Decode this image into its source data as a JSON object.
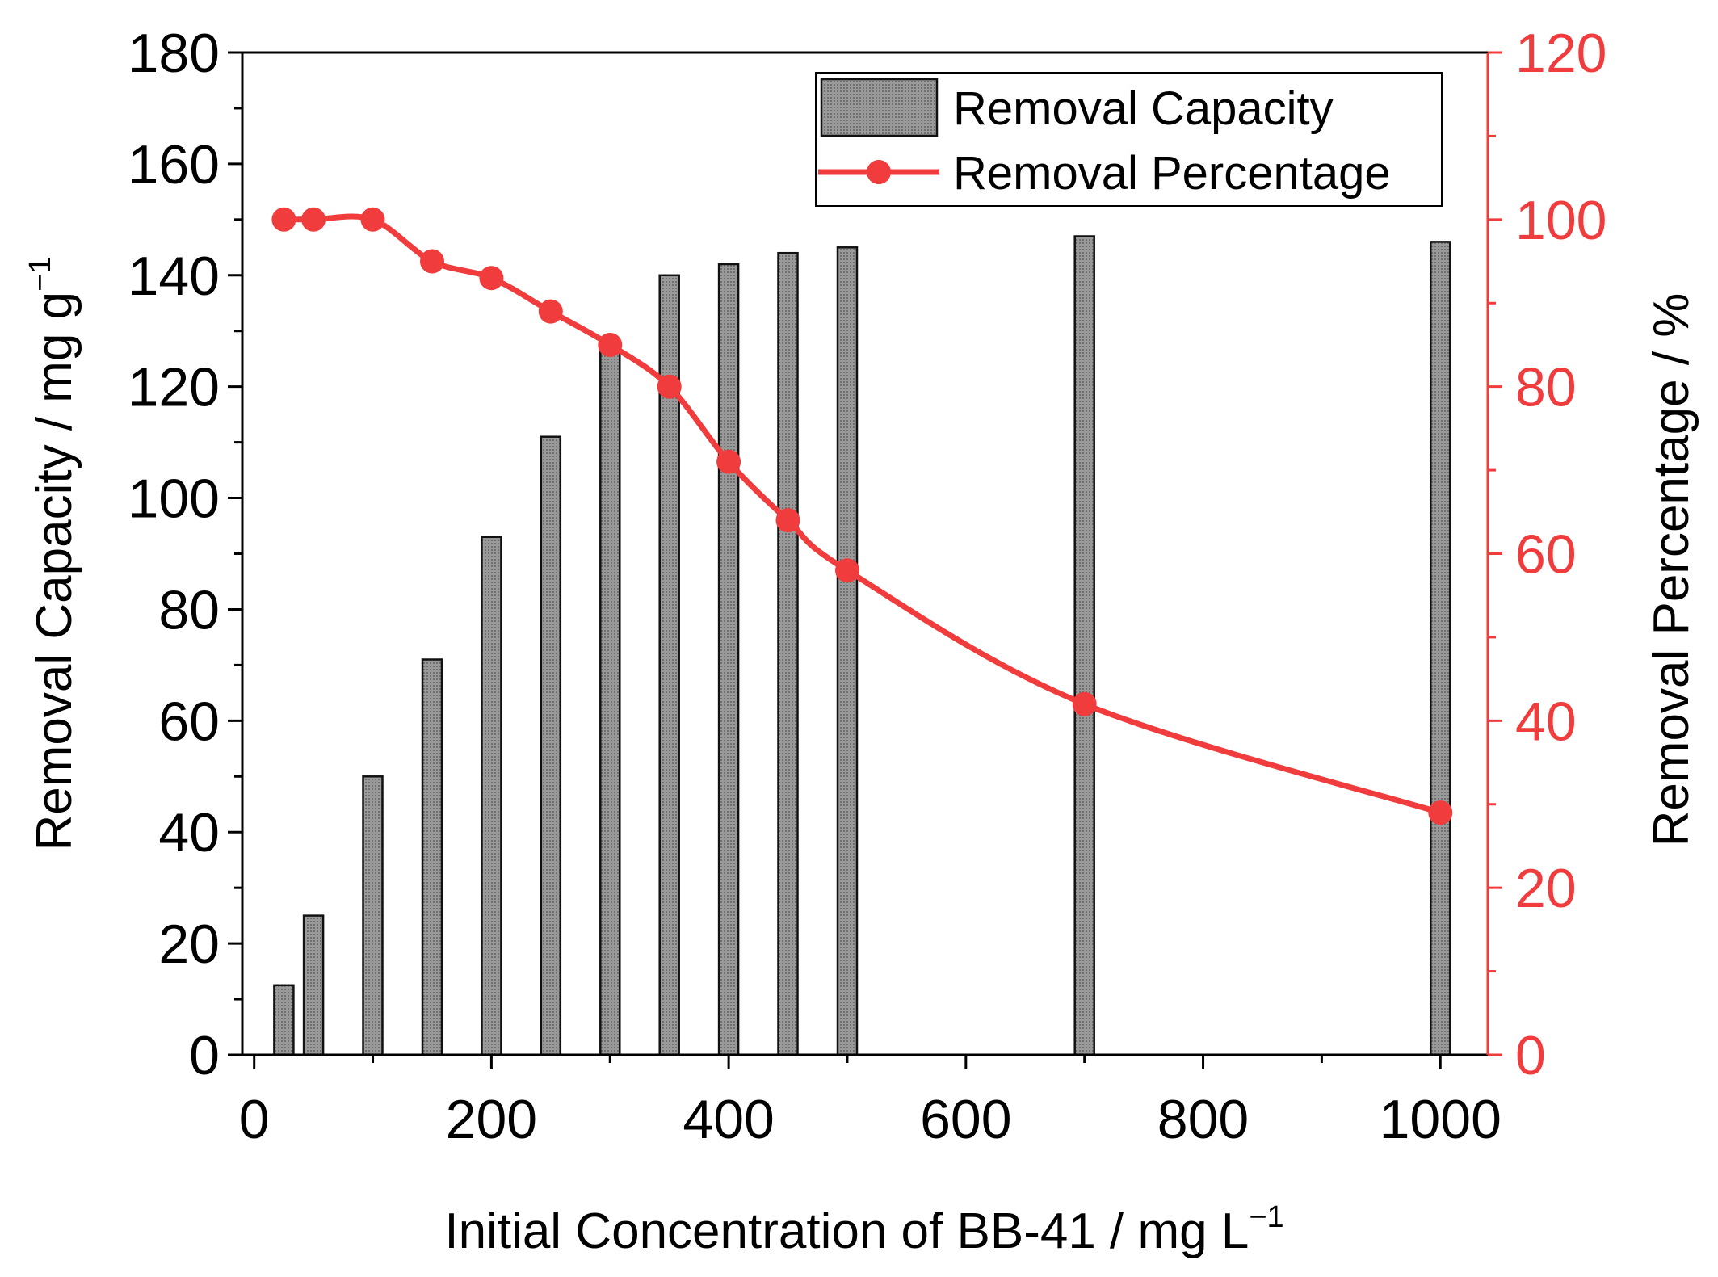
{
  "chart_data": {
    "type": "bar+line",
    "xlabel": "Initial Concentration of BB-41 / mg L",
    "xlabel_sup": "−1",
    "ylabel_left": "Removal Capacity / mg g",
    "ylabel_left_sup": "−1",
    "ylabel_right": "Removal Percentage / %",
    "xlim": [
      -10,
      1040
    ],
    "ylim_left": [
      0,
      180
    ],
    "ylim_right": [
      0,
      120
    ],
    "x_ticks": [
      "0",
      "200",
      "400",
      "600",
      "800",
      "1000"
    ],
    "y_left_ticks": [
      "0",
      "20",
      "40",
      "60",
      "80",
      "100",
      "120",
      "140",
      "160",
      "180"
    ],
    "y_right_ticks": [
      "0",
      "20",
      "40",
      "60",
      "80",
      "100",
      "120"
    ],
    "x": [
      25,
      50,
      100,
      150,
      200,
      250,
      300,
      350,
      400,
      450,
      500,
      700,
      1000
    ],
    "series": [
      {
        "name": "Removal Capacity",
        "type": "bar",
        "axis": "left",
        "color": "#9e9e9e",
        "values": [
          12.5,
          25,
          50,
          71,
          93,
          111,
          127,
          140,
          142,
          144,
          145,
          147,
          146
        ]
      },
      {
        "name": "Removal Percentage",
        "type": "line",
        "axis": "right",
        "color": "#f03c3c",
        "values": [
          100,
          100,
          100,
          95,
          93,
          89,
          85,
          80,
          71,
          64,
          58,
          42,
          29
        ]
      }
    ],
    "legend": {
      "position": "top-right",
      "entries": [
        "Removal Capacity",
        "Removal Percentage"
      ]
    }
  }
}
